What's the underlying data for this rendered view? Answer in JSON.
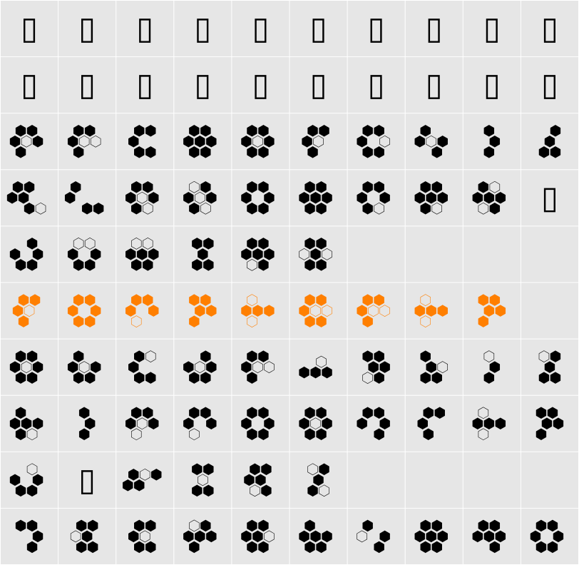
{
  "glyphs": [
    "▯",
    "▯",
    "▯",
    "▯",
    "▯",
    "▯",
    "▯",
    "▯",
    "▯",
    "▯",
    "▯",
    "▯",
    "▯",
    "▯",
    "▯",
    "▯",
    "▯",
    "▯",
    "▯",
    "▯",
    "▯",
    "▯"
  ]
}
